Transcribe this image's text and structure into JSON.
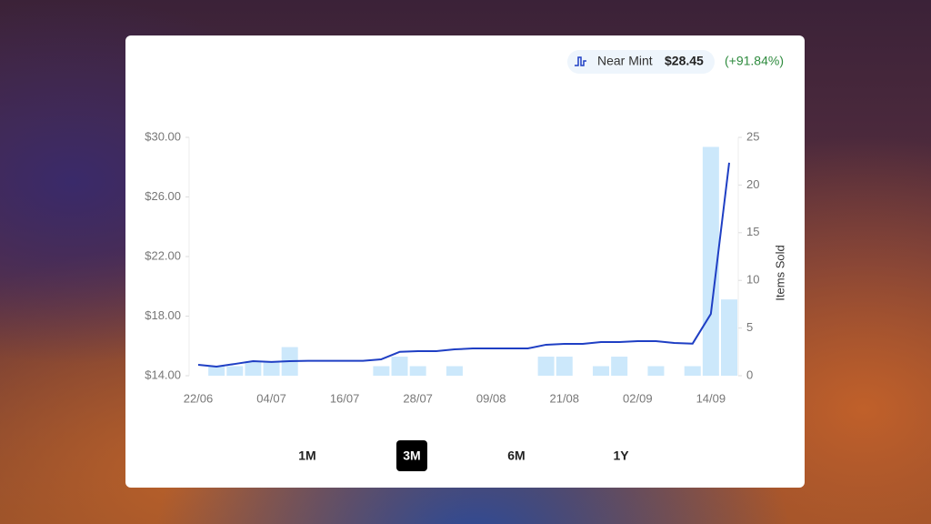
{
  "chart_data": {
    "type": "combo",
    "legend": {
      "price": "$28.45",
      "change": "(+91.84%)"
    },
    "y2_label": "Items Sold",
    "categories": [
      "22/06",
      null,
      null,
      null,
      "04/07",
      null,
      null,
      null,
      "16/07",
      null,
      null,
      null,
      "28/07",
      null,
      null,
      null,
      "09/08",
      null,
      null,
      null,
      "21/08",
      null,
      null,
      null,
      "02/09",
      null,
      null,
      null,
      "14/09",
      null
    ],
    "series": [
      {
        "type": "bar",
        "axis": "y2",
        "color": "#cce8fb",
        "values": [
          0,
          1,
          1,
          1.5,
          1.5,
          3,
          0,
          0,
          0,
          0,
          1,
          2,
          1,
          0,
          1,
          0,
          0,
          0,
          0,
          2,
          2,
          0,
          1,
          2,
          0,
          1,
          0,
          1,
          24,
          8
        ]
      },
      {
        "type": "line",
        "name": "Near Mint",
        "color": "#1f3fc4",
        "values": [
          14.73,
          14.61,
          14.79,
          14.98,
          14.92,
          14.98,
          15.0,
          15.0,
          15.0,
          15.0,
          15.1,
          15.6,
          15.65,
          15.65,
          15.77,
          15.83,
          15.83,
          15.83,
          15.83,
          16.08,
          16.14,
          16.14,
          16.26,
          16.26,
          16.32,
          16.32,
          16.2,
          16.15,
          18.15,
          28.3
        ]
      }
    ],
    "ylim": [
      14,
      30
    ],
    "yticks": [
      {
        "value": 14,
        "label": "$14.00"
      },
      {
        "value": 18,
        "label": "$18.00"
      },
      {
        "value": 22,
        "label": "$22.00"
      },
      {
        "value": 26,
        "label": "$26.00"
      },
      {
        "value": 30,
        "label": "$30.00"
      }
    ],
    "y2lim": [
      0,
      25
    ],
    "y2ticks": [
      0,
      5,
      10,
      15,
      20,
      25
    ]
  },
  "periods": [
    "1M",
    "3M",
    "6M",
    "1Y"
  ],
  "selected_period_index": 1
}
